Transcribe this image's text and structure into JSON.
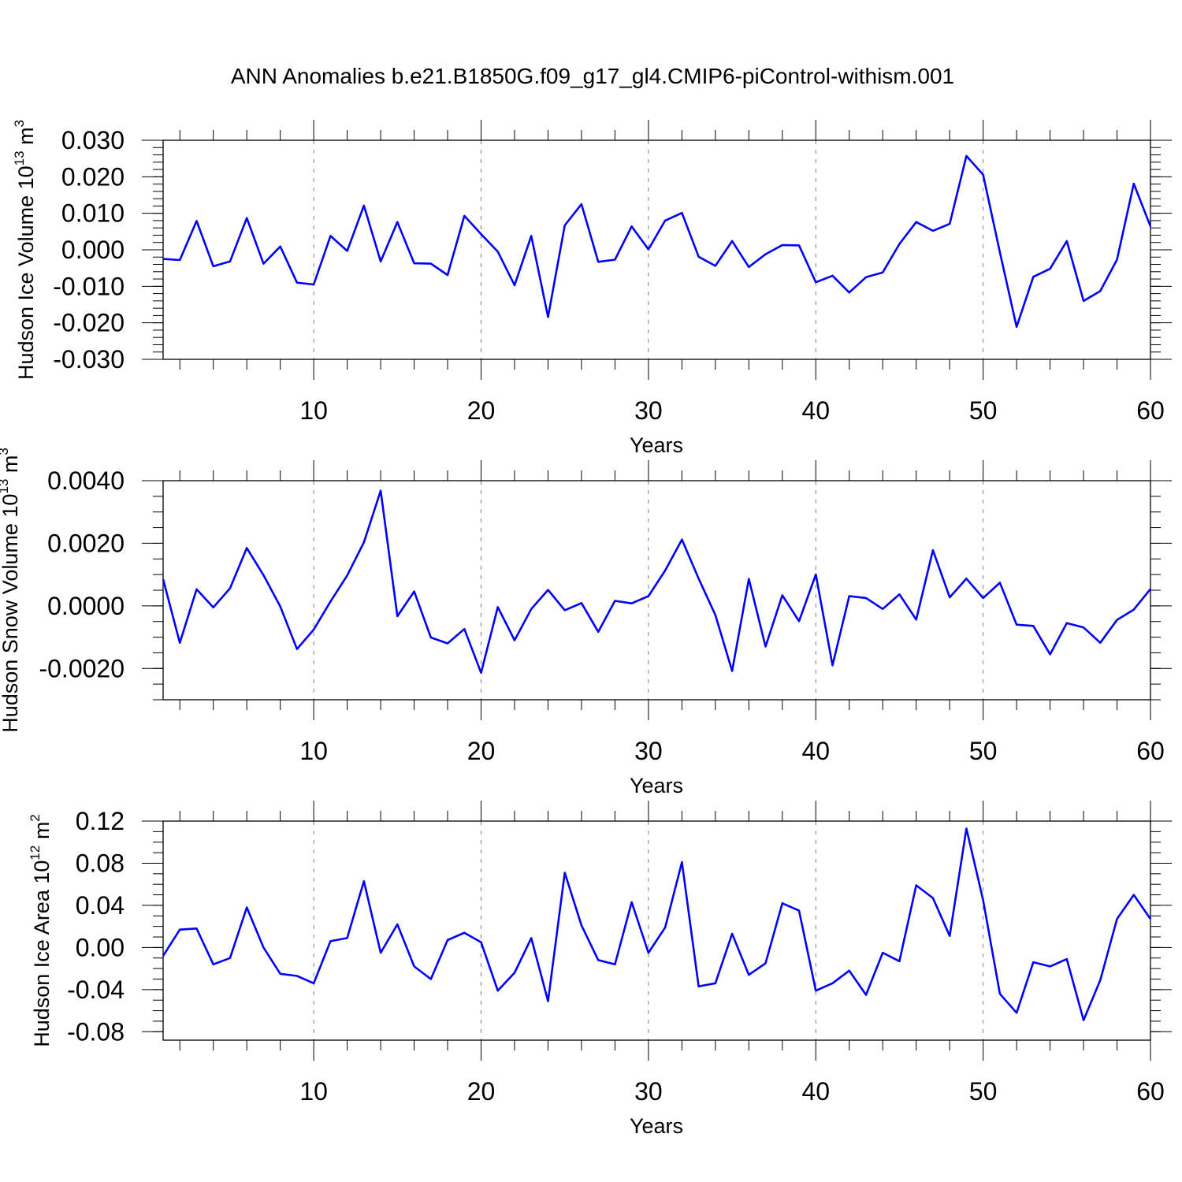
{
  "title": "ANN Anomalies b.e21.B1850G.f09_g17_gl4.CMIP6-piControl-withism.001",
  "colors": {
    "line": "#0000ff",
    "axis": "#000000",
    "grid": "#808080"
  },
  "chart_data": [
    {
      "type": "line",
      "ylabel": {
        "main": "Hudson Ice Volume 10",
        "exp": "13",
        "unit": " m",
        "unit_exp": "3"
      },
      "xlabel": "Years",
      "xlim": [
        1,
        60
      ],
      "ylim": [
        -0.03,
        0.03
      ],
      "xticks": [
        10,
        20,
        30,
        40,
        50,
        60
      ],
      "yticks": [
        -0.03,
        -0.02,
        -0.01,
        0.0,
        0.01,
        0.02,
        0.03
      ],
      "ytick_labels": [
        "-0.030",
        "-0.020",
        "-0.010",
        "0.000",
        "0.010",
        "0.020",
        "0.030"
      ],
      "yminor_step": 0.002,
      "series": [
        {
          "name": "Hudson Ice Volume",
          "x_start": 1,
          "values": [
            -0.0025,
            -0.0028,
            0.0079,
            -0.0045,
            -0.0032,
            0.0087,
            -0.0038,
            0.0009,
            -0.009,
            -0.0095,
            0.0038,
            -0.0003,
            0.0121,
            -0.0032,
            0.0076,
            -0.0037,
            -0.0038,
            -0.0069,
            0.0093,
            0.0043,
            -0.0005,
            -0.0097,
            0.0038,
            -0.0184,
            0.0067,
            0.0125,
            -0.0033,
            -0.0027,
            0.0064,
            0.0001,
            0.008,
            0.0101,
            -0.0019,
            -0.0044,
            0.0024,
            -0.0047,
            -0.0012,
            0.0013,
            0.0012,
            -0.0089,
            -0.0071,
            -0.0117,
            -0.0075,
            -0.0062,
            0.0016,
            0.0076,
            0.0052,
            0.0071,
            0.0257,
            0.0206,
            -0.0007,
            -0.0211,
            -0.0074,
            -0.0052,
            0.0024,
            -0.014,
            -0.0113,
            -0.0027,
            0.0181,
            0.0064
          ]
        }
      ]
    },
    {
      "type": "line",
      "ylabel": {
        "main": "Hudson Snow Volume 10",
        "exp": "13",
        "unit": " m",
        "unit_exp": "3"
      },
      "xlabel": "Years",
      "xlim": [
        1,
        60
      ],
      "ylim": [
        -0.003,
        0.004
      ],
      "xticks": [
        10,
        20,
        30,
        40,
        50,
        60
      ],
      "yticks": [
        -0.002,
        0.0,
        0.002,
        0.004
      ],
      "ytick_labels": [
        "-0.0020",
        "0.0000",
        "0.0020",
        "0.0040"
      ],
      "yminor_step": 0.0005,
      "series": [
        {
          "name": "Hudson Snow Volume",
          "x_start": 1,
          "values": [
            0.00085,
            -0.00118,
            0.00053,
            -5e-05,
            0.00056,
            0.00185,
            0.00098,
            -2e-05,
            -0.00138,
            -0.00076,
            0.00014,
            0.00097,
            0.00203,
            0.00368,
            -0.00033,
            0.00046,
            -0.00101,
            -0.0012,
            -0.00074,
            -0.00214,
            -4e-05,
            -0.0011,
            -0.0001,
            0.00051,
            -0.00014,
            9e-05,
            -0.00083,
            0.00016,
            8e-05,
            0.00031,
            0.00113,
            0.00212,
            0.00087,
            -0.00029,
            -0.00208,
            0.00086,
            -0.0013,
            0.00034,
            -0.00049,
            0.001,
            -0.0019,
            0.00031,
            0.00025,
            -0.0001,
            0.00037,
            -0.00044,
            0.00178,
            0.00027,
            0.00087,
            0.00025,
            0.00074,
            -0.0006,
            -0.00064,
            -0.00155,
            -0.00055,
            -0.00069,
            -0.00118,
            -0.00045,
            -0.00012,
            0.00054
          ]
        }
      ]
    },
    {
      "type": "line",
      "ylabel": {
        "main": "Hudson Ice Area 10",
        "exp": "12",
        "unit": " m",
        "unit_exp": "2"
      },
      "xlabel": "Years",
      "xlim": [
        1,
        60
      ],
      "ylim": [
        -0.088,
        0.12
      ],
      "xticks": [
        10,
        20,
        30,
        40,
        50,
        60
      ],
      "yticks": [
        -0.08,
        -0.04,
        0.0,
        0.04,
        0.08,
        0.12
      ],
      "ytick_labels": [
        "-0.08",
        "-0.04",
        "0.00",
        "0.04",
        "0.08",
        "0.12"
      ],
      "yminor_step": 0.01,
      "series": [
        {
          "name": "Hudson Ice Area",
          "x_start": 1,
          "values": [
            -0.008,
            0.017,
            0.018,
            -0.016,
            -0.01,
            0.038,
            0.0,
            -0.025,
            -0.027,
            -0.034,
            0.006,
            0.009,
            0.063,
            -0.005,
            0.022,
            -0.018,
            -0.03,
            0.007,
            0.014,
            0.005,
            -0.041,
            -0.024,
            0.009,
            -0.051,
            0.071,
            0.021,
            -0.012,
            -0.016,
            0.043,
            -0.005,
            0.019,
            0.081,
            -0.037,
            -0.034,
            0.013,
            -0.026,
            -0.015,
            0.042,
            0.035,
            -0.041,
            -0.034,
            -0.022,
            -0.045,
            -0.005,
            -0.013,
            0.059,
            0.047,
            0.011,
            0.113,
            0.045,
            -0.044,
            -0.062,
            -0.014,
            -0.018,
            -0.011,
            -0.069,
            -0.031,
            0.027,
            0.05,
            0.027
          ]
        }
      ]
    }
  ]
}
